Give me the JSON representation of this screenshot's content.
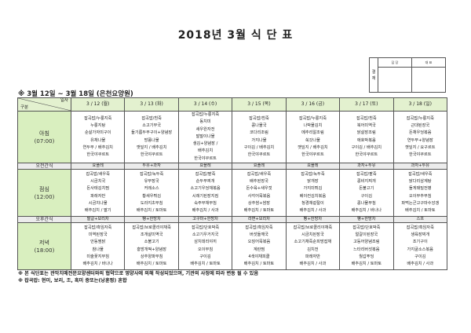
{
  "title": "2018년 3월 식 단 표",
  "approval": {
    "label": "결 재",
    "col1": "담 당",
    "col2": "대 표"
  },
  "heading": "※ 3월 12일 ~ 3월 18일 (은천요양원)",
  "corner": {
    "top": "일자",
    "bottom": "구분"
  },
  "days": [
    "3 / 12 (월)",
    "3 / 13 (화)",
    "3 / 14 (수)",
    "3 / 15 (목)",
    "3 / 16 (금)",
    "3 / 17 (토)",
    "3 / 18 (일)"
  ],
  "meals": {
    "breakfast": {
      "label": "아침",
      "time": "(07:00)",
      "items": [
        [
          "잡곡밥/누룽지죽",
          "누룽지탕",
          "순살가자미구이",
          "유채나물",
          "연두부 / 배추김치",
          "한국야쿠르트"
        ],
        [
          "잡곡밥/흰죽",
          "소고기무국",
          "들기름두부구이+양념장",
          "방풍나물",
          "깻잎지 / 배추김치",
          "한국야쿠르트"
        ],
        [
          "잡곡밥/누룽지죽",
          "동치미",
          "새우완자전",
          "발말이나물",
          "생김+양념장 /",
          "배추김치",
          "한국야쿠르트"
        ],
        [
          "잡곡밥/흰죽",
          "콩나물국",
          "코다리조림",
          "가지나물",
          "구이김 / 배추김치",
          "한국야쿠르트"
        ],
        [
          "잡곡밥/누룽지죽",
          "나박물김치",
          "메추리알조림",
          "쑥갓나물",
          "깻잎지 / 배추김치",
          "한국야쿠르트"
        ],
        [
          "잡곡밥/흰죽",
          "북어미역국",
          "닭살장조림",
          "애호박볶음",
          "구이김 / 배추김치",
          "한국야쿠르트"
        ],
        [
          "잡곡밥/누룽지죽",
          "근대된장국",
          "돈채우엉볶음",
          "연두부+양념장",
          "깻잎지 / 요구르트",
          "한국야쿠르트"
        ]
      ]
    },
    "am_snack": {
      "label": "오전간식",
      "items": [
        "요플레",
        "두유+과자",
        "요플레",
        "요플레",
        "요플레",
        "과자+두유",
        "과자+두유"
      ]
    },
    "lunch": {
      "label": "점심",
      "time": "(12:00)",
      "items": [
        [
          "잡곡밥/새우죽",
          "시금치국",
          "돈사태김치찜",
          "파래자반",
          "시금치나물",
          "배추김치 / 딸기"
        ],
        [
          "잡곡밥/녹두죽",
          "유부장국",
          "커레소스",
          "황새우튀김",
          "도라지초무침",
          "배추김치 / 토마토"
        ],
        [
          "잡곡밥/팥죽",
          "순두부찌개",
          "소고기우엉채볶음",
          "시래기된장지짐",
          "숙주무채무침",
          "배추김치 / 사과"
        ],
        [
          "잡곡밥/새우죽",
          "배추된장국",
          "돈수육+새우젓",
          "사각어묵볶음",
          "상추쌈+쌈장",
          "배추김치 / 토마토"
        ],
        [
          "잡곡밥/녹두죽",
          "닭개장",
          "가지미튀김",
          "베이컨김치볶음",
          "청경채겉절이",
          "배추김치 / 사과"
        ],
        [
          "잡곡밥/팥죽",
          "콩비지찌개",
          "돈불고기",
          "구이김",
          "콩나물무침",
          "배추김치 / 바나나"
        ],
        [
          "잡곡밥/새우죽",
          "닭다리삼계탕",
          "돌게돼밀전병",
          "오이부추무침",
          "파먹는군고구마수앙갱",
          "배추김치 / 토마토"
        ]
      ]
    },
    "pm_snack": {
      "label": "오후간식",
      "items": [
        "딸갈+보리차",
        "빵+한방차",
        "고구마+한방차",
        "라면+보리차",
        "빵+한방차",
        "빵+한방차",
        "스프"
      ]
    },
    "dinner": {
      "label": "저녁",
      "time": "(18:00)",
      "items": [
        [
          "잡곡밥/흑임자죽",
          "미역된장국",
          "안동찜닭",
          "참나물",
          "미술꽃지무침",
          "배추김치 / 바나나"
        ],
        [
          "잡곡밥/브로콜리야채죽",
          "조개살미역국",
          "소불고기",
          "홍방개떡+양념장",
          "상추양파무침",
          "배추김치 / 토마토"
        ],
        [
          "잡곡밥/단호박죽",
          "소고기우거지국",
          "삼치데리야끼",
          "오이무침",
          "구이김",
          "배추김치 / 토마토"
        ],
        [
          "잡곡밥/흑임자죽",
          "버섯들깨국",
          "오징어묵볶음",
          "계란찜",
          "4색야채피클",
          "배추김치 / 토마토"
        ],
        [
          "잡곡밥/브로콜리야채죽",
          "시금치된장국",
          "소고기채죽순피망잡채",
          "김치전",
          "파래자반",
          "배추김치 / 사과"
        ],
        [
          "잡곡밥/단호박죽",
          "얼갈이된장국",
          "고등어양념조림",
          "느타리버섯볶음",
          "월갑푸딩",
          "배추김치 / 토마토"
        ],
        [
          "잡곡밥/흑임자죽",
          "생육장찌개",
          "조기구이",
          "가지굴소스볶음",
          "구이김",
          "배추김치 / 사과"
        ]
      ]
    }
  },
  "notes": [
    "※ 본 식단표는 관악치매전문요양센터와의 협약으로 영양사에 의해 작성되었으며, 기관의 사정에 따라 변동 될 수 있음",
    "※ 잡곡밥: 현미, 보리, 조, 흑미 중또는(낭훈찡) 혼합"
  ]
}
